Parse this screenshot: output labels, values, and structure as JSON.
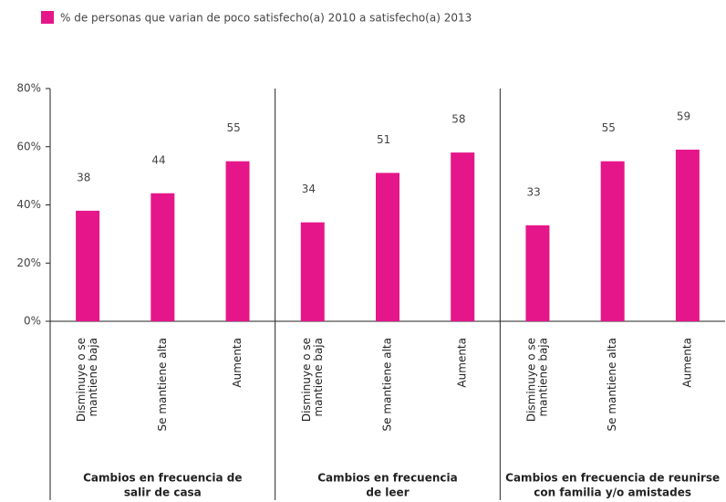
{
  "chart_data": {
    "type": "bar",
    "series": [
      {
        "name": "% de personas que varian de poco satisfecho(a) 2010 a satisfecho(a) 2013",
        "color": "#e5168a",
        "values": [
          38,
          44,
          55,
          34,
          51,
          58,
          33,
          55,
          59
        ]
      }
    ],
    "categories": [
      [
        "Disminuye o se",
        "mantiene baja"
      ],
      [
        "Se mantiene alta"
      ],
      [
        "Aumenta"
      ],
      [
        "Disminuye o se",
        "mantiene baja"
      ],
      [
        "Se mantiene alta"
      ],
      [
        "Aumenta"
      ],
      [
        "Disminuye o se",
        "mantiene baja"
      ],
      [
        "Se mantiene alta"
      ],
      [
        "Aumenta"
      ]
    ],
    "groups": [
      [
        "Cambios en frecuencia de",
        "salir de casa"
      ],
      [
        "Cambios en frecuencia",
        "de leer"
      ],
      [
        "Cambios en frecuencia de reunirse",
        "con familia y/o amistades"
      ]
    ],
    "ylim": [
      0,
      80
    ],
    "yticks": [
      {
        "value": 0,
        "label": "0%"
      },
      {
        "value": 20,
        "label": "20%"
      },
      {
        "value": 40,
        "label": "40%"
      },
      {
        "value": 60,
        "label": "60%"
      },
      {
        "value": 80,
        "label": "80%"
      }
    ],
    "grid": false
  }
}
